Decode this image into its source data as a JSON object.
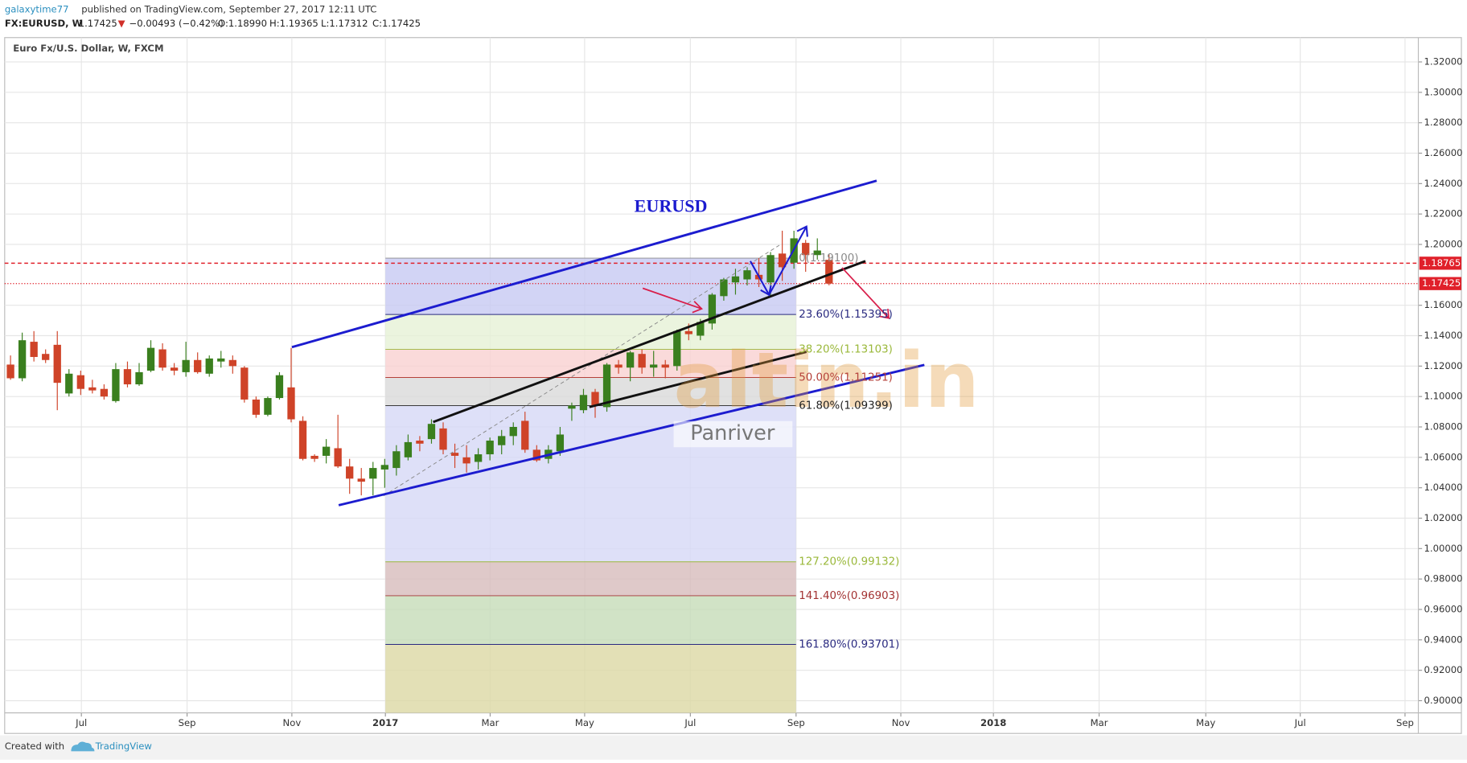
{
  "header": {
    "author": "galaxytime77",
    "published": "published on TradingView.com, September 27, 2017 12:11 UTC",
    "symbol": "FX:EURUSD, W",
    "last": "1.17425",
    "arrow": "▼",
    "change": "−0.00493 (−0.42%)",
    "ohlc": [
      "O:1.18990",
      "H:1.19365",
      "L:1.17312",
      "C:1.17425"
    ]
  },
  "footer": {
    "text": "Created with",
    "brand": "TradingView"
  },
  "chart_data": {
    "type": "candlestick",
    "title": "Euro Fx/U.S. Dollar, W, FXCM",
    "up_color": "#3a7f1e",
    "down_color": "#cf4328",
    "grid": true,
    "xlim": [
      0,
      120.9
    ],
    "ylim": [
      0.892,
      1.336
    ],
    "xticks": [
      {
        "value": 6.56,
        "label": "Jul"
      },
      {
        "value": 15.6,
        "label": "Sep"
      },
      {
        "value": 24.56,
        "label": "Nov"
      },
      {
        "value": 32.56,
        "label": "2017"
      },
      {
        "value": 41.52,
        "label": "Mar"
      },
      {
        "value": 49.6,
        "label": "May"
      },
      {
        "value": 58.64,
        "label": "Jul"
      },
      {
        "value": 67.68,
        "label": "Sep"
      },
      {
        "value": 76.64,
        "label": "Nov"
      },
      {
        "value": 84.56,
        "label": "2018"
      },
      {
        "value": 93.6,
        "label": "Mar"
      },
      {
        "value": 102.72,
        "label": "May"
      },
      {
        "value": 110.8,
        "label": "Jul"
      },
      {
        "value": 119.76,
        "label": "Sep"
      }
    ],
    "yticks": [
      {
        "value": 1.32,
        "label": "1.32000"
      },
      {
        "value": 1.3,
        "label": "1.30000"
      },
      {
        "value": 1.28,
        "label": "1.28000"
      },
      {
        "value": 1.26,
        "label": "1.26000"
      },
      {
        "value": 1.24,
        "label": "1.24000"
      },
      {
        "value": 1.22,
        "label": "1.22000"
      },
      {
        "value": 1.2,
        "label": "1.20000"
      },
      {
        "value": 1.16,
        "label": "1.16000"
      },
      {
        "value": 1.14,
        "label": "1.14000"
      },
      {
        "value": 1.12,
        "label": "1.12000"
      },
      {
        "value": 1.1,
        "label": "1.10000"
      },
      {
        "value": 1.08,
        "label": "1.08000"
      },
      {
        "value": 1.06,
        "label": "1.06000"
      },
      {
        "value": 1.04,
        "label": "1.04000"
      },
      {
        "value": 1.02,
        "label": "1.02000"
      },
      {
        "value": 1.0,
        "label": "1.00000"
      },
      {
        "value": 0.98,
        "label": "0.98000"
      },
      {
        "value": 0.96,
        "label": "0.96000"
      },
      {
        "value": 0.94,
        "label": "0.94000"
      },
      {
        "value": 0.92,
        "label": "0.92000"
      },
      {
        "value": 0.9,
        "label": "0.90000"
      }
    ],
    "x": [
      0.5,
      1.5,
      2.5,
      3.5,
      4.5,
      5.5,
      6.5,
      7.5,
      8.5,
      9.5,
      10.5,
      11.5,
      12.5,
      13.5,
      14.5,
      15.5,
      16.5,
      17.5,
      18.5,
      19.5,
      20.5,
      21.5,
      22.5,
      23.5,
      24.5,
      25.5,
      26.5,
      27.5,
      28.5,
      29.5,
      30.5,
      31.5,
      32.5,
      33.5,
      34.5,
      35.5,
      36.5,
      37.5,
      38.5,
      39.5,
      40.5,
      41.5,
      42.5,
      43.5,
      44.5,
      45.5,
      46.5,
      47.5,
      48.5,
      49.5,
      50.5,
      51.5,
      52.5,
      53.5,
      54.5,
      55.5,
      56.5,
      57.5,
      58.5,
      59.5,
      60.5,
      61.5,
      62.5,
      63.5,
      64.5,
      65.5,
      66.5,
      67.5,
      68.5,
      69.5,
      70.5
    ],
    "open": [
      1.121,
      1.112,
      1.136,
      1.128,
      1.134,
      1.102,
      1.114,
      1.106,
      1.105,
      1.097,
      1.118,
      1.108,
      1.117,
      1.131,
      1.119,
      1.116,
      1.124,
      1.115,
      1.123,
      1.124,
      1.119,
      1.098,
      1.088,
      1.099,
      1.106,
      1.084,
      1.061,
      1.061,
      1.066,
      1.054,
      1.046,
      1.046,
      1.052,
      1.053,
      1.06,
      1.071,
      1.072,
      1.079,
      1.063,
      1.06,
      1.057,
      1.062,
      1.068,
      1.074,
      1.084,
      1.065,
      1.059,
      1.064,
      1.092,
      1.091,
      1.103,
      1.093,
      1.121,
      1.119,
      1.128,
      1.119,
      1.121,
      1.12,
      1.143,
      1.14,
      1.148,
      1.166,
      1.175,
      1.177,
      1.18,
      1.175,
      1.194,
      1.188,
      1.201,
      1.193,
      1.1899
    ],
    "high": [
      1.127,
      1.142,
      1.143,
      1.131,
      1.143,
      1.118,
      1.117,
      1.111,
      1.108,
      1.122,
      1.123,
      1.122,
      1.137,
      1.135,
      1.122,
      1.136,
      1.129,
      1.127,
      1.13,
      1.127,
      1.12,
      1.1,
      1.1,
      1.116,
      1.132,
      1.087,
      1.062,
      1.072,
      1.088,
      1.059,
      1.053,
      1.057,
      1.059,
      1.068,
      1.075,
      1.074,
      1.085,
      1.083,
      1.069,
      1.068,
      1.066,
      1.073,
      1.078,
      1.083,
      1.09,
      1.068,
      1.068,
      1.08,
      1.096,
      1.105,
      1.105,
      1.122,
      1.124,
      1.13,
      1.131,
      1.13,
      1.124,
      1.144,
      1.148,
      1.151,
      1.168,
      1.178,
      1.184,
      1.185,
      1.191,
      1.195,
      1.209,
      1.209,
      1.203,
      1.204,
      1.19365
    ],
    "low": [
      1.111,
      1.11,
      1.123,
      1.122,
      1.091,
      1.1,
      1.101,
      1.102,
      1.098,
      1.096,
      1.106,
      1.107,
      1.116,
      1.117,
      1.114,
      1.113,
      1.115,
      1.113,
      1.119,
      1.115,
      1.096,
      1.086,
      1.087,
      1.098,
      1.083,
      1.058,
      1.057,
      1.056,
      1.053,
      1.036,
      1.035,
      1.035,
      1.04,
      1.048,
      1.058,
      1.064,
      1.069,
      1.062,
      1.053,
      1.05,
      1.052,
      1.058,
      1.062,
      1.068,
      1.063,
      1.057,
      1.056,
      1.061,
      1.084,
      1.089,
      1.086,
      1.09,
      1.115,
      1.11,
      1.115,
      1.113,
      1.112,
      1.117,
      1.137,
      1.137,
      1.144,
      1.163,
      1.167,
      1.173,
      1.172,
      1.166,
      1.176,
      1.184,
      1.182,
      1.19,
      1.17312
    ],
    "close": [
      1.112,
      1.137,
      1.126,
      1.124,
      1.109,
      1.115,
      1.105,
      1.104,
      1.1,
      1.118,
      1.108,
      1.116,
      1.132,
      1.119,
      1.117,
      1.124,
      1.116,
      1.125,
      1.125,
      1.12,
      1.098,
      1.088,
      1.099,
      1.114,
      1.085,
      1.059,
      1.059,
      1.067,
      1.054,
      1.046,
      1.044,
      1.053,
      1.055,
      1.064,
      1.07,
      1.069,
      1.082,
      1.065,
      1.061,
      1.056,
      1.062,
      1.071,
      1.074,
      1.08,
      1.065,
      1.058,
      1.065,
      1.075,
      1.094,
      1.101,
      1.094,
      1.121,
      1.119,
      1.129,
      1.119,
      1.121,
      1.119,
      1.143,
      1.141,
      1.149,
      1.167,
      1.177,
      1.179,
      1.183,
      1.177,
      1.193,
      1.185,
      1.204,
      1.193,
      1.196,
      1.17425
    ],
    "fib": {
      "x_range": [
        32.56,
        67.68
      ],
      "levels": [
        {
          "value": 1.191,
          "label": "0(1.19100)",
          "color": "#8a8a8a",
          "fill": "#c7c9f2"
        },
        {
          "value": 1.15395,
          "label": "23.60%(1.15395)",
          "color": "#2a2a80",
          "fill": "#e6f1d6"
        },
        {
          "value": 1.13103,
          "label": "38.20%(1.13103)",
          "color": "#9ab83a",
          "fill": "#f9d1d1"
        },
        {
          "value": 1.11251,
          "label": "50.00%(1.11251)",
          "color": "#b5413a",
          "fill": "#d9d9d9"
        },
        {
          "value": 1.09399,
          "label": "61.80%(1.09399)",
          "color": "#222222",
          "fill": "#d6d8f6"
        },
        {
          "value": 0.99132,
          "label": "127.20%(0.99132)",
          "color": "#9ab83a",
          "fill": "#d7bcbc"
        },
        {
          "value": 0.96903,
          "label": "141.40%(0.96903)",
          "color": "#a33333",
          "fill": "#c6dcb8"
        },
        {
          "value": 0.93701,
          "label": "161.80%(0.93701)",
          "color": "#2a2a80",
          "fill": "#dcd8a4"
        }
      ]
    },
    "hlines": [
      {
        "value": 1.18765,
        "label": "1.18765",
        "color": "#e0202a",
        "dash": "4,3"
      },
      {
        "value": 1.17425,
        "label": "1.17425",
        "color": "#e0202a",
        "dash": "1,2"
      }
    ],
    "annotation": "EURUSD",
    "watermark": [
      "altin.in",
      "Panriver"
    ]
  }
}
